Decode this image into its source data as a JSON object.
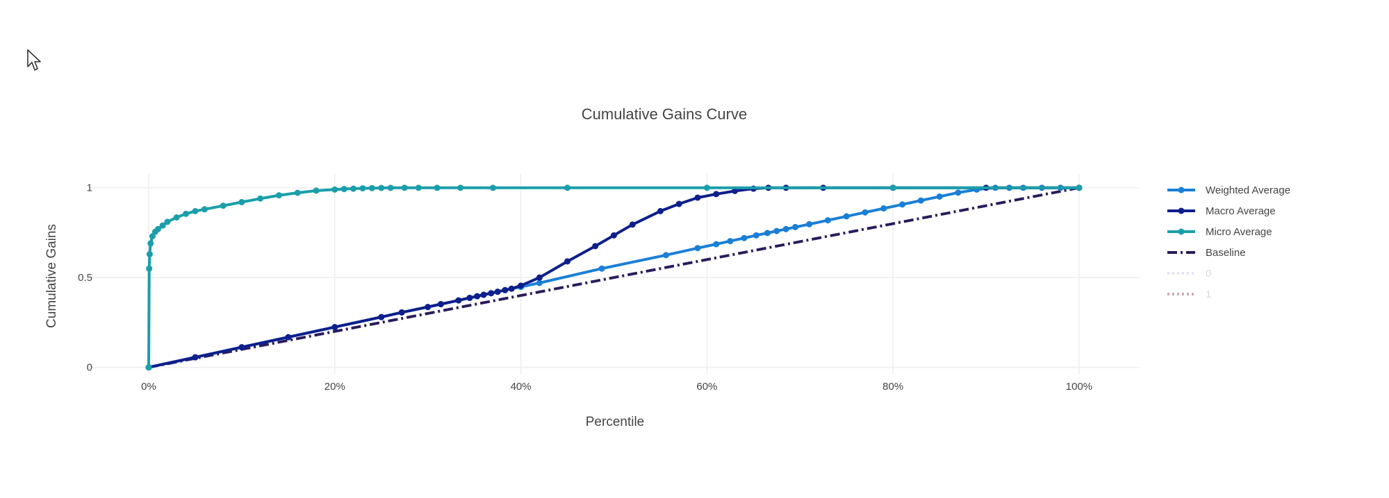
{
  "chart_data": {
    "type": "line",
    "title": "Cumulative Gains Curve",
    "xlabel": "Percentile",
    "ylabel": "Cumulative Gains",
    "xlim": [
      -0.065,
      1.065
    ],
    "ylim": [
      -0.04,
      1.08
    ],
    "x_tick_values": [
      0,
      0.2,
      0.4,
      0.6,
      0.8,
      1.0
    ],
    "x_tick_labels": [
      "0%",
      "20%",
      "40%",
      "60%",
      "80%",
      "100%"
    ],
    "y_tick_values": [
      0,
      0.5,
      1
    ],
    "y_tick_labels": [
      "0",
      "0.5",
      "1"
    ],
    "grid": true,
    "legend_position": "right",
    "series": [
      {
        "name": "Baseline",
        "color": "#2a1b5c",
        "dash": "dashdot",
        "opacity": 1,
        "markers": false,
        "x": [
          0,
          1
        ],
        "y": [
          0,
          1
        ]
      },
      {
        "name": "Weighted Average",
        "color": "#1a7fd6",
        "dash": "solid",
        "opacity": 1,
        "markers": true,
        "x": [
          0,
          0.05,
          0.1,
          0.15,
          0.2,
          0.25,
          0.272,
          0.3,
          0.314,
          0.333,
          0.345,
          0.353,
          0.36,
          0.368,
          0.375,
          0.383,
          0.39,
          0.4,
          0.42,
          0.487,
          0.556,
          0.59,
          0.61,
          0.625,
          0.64,
          0.653,
          0.665,
          0.675,
          0.685,
          0.695,
          0.71,
          0.73,
          0.75,
          0.77,
          0.79,
          0.81,
          0.83,
          0.85,
          0.87,
          0.89,
          0.91,
          0.925,
          0.94,
          0.96,
          0.98,
          1.0
        ],
        "y": [
          0,
          0.056,
          0.112,
          0.168,
          0.224,
          0.28,
          0.306,
          0.336,
          0.352,
          0.373,
          0.387,
          0.396,
          0.404,
          0.413,
          0.421,
          0.43,
          0.438,
          0.448,
          0.47,
          0.55,
          0.625,
          0.664,
          0.686,
          0.703,
          0.72,
          0.735,
          0.748,
          0.759,
          0.77,
          0.781,
          0.797,
          0.819,
          0.841,
          0.863,
          0.885,
          0.907,
          0.929,
          0.951,
          0.973,
          0.99,
          1.0,
          1.0,
          1.0,
          1.0,
          1.0,
          1.0
        ]
      },
      {
        "name": "Macro Average",
        "color": "#0d1f8c",
        "dash": "solid",
        "opacity": 1,
        "markers": true,
        "x": [
          0,
          0.05,
          0.1,
          0.15,
          0.2,
          0.25,
          0.272,
          0.3,
          0.314,
          0.333,
          0.345,
          0.353,
          0.36,
          0.368,
          0.375,
          0.383,
          0.39,
          0.4,
          0.42,
          0.45,
          0.48,
          0.5,
          0.52,
          0.55,
          0.57,
          0.59,
          0.61,
          0.63,
          0.65,
          0.666,
          0.685,
          0.725,
          0.8,
          0.9,
          1.0
        ],
        "y": [
          0,
          0.056,
          0.112,
          0.168,
          0.224,
          0.28,
          0.306,
          0.336,
          0.352,
          0.373,
          0.387,
          0.396,
          0.404,
          0.413,
          0.421,
          0.43,
          0.438,
          0.455,
          0.5,
          0.59,
          0.675,
          0.735,
          0.795,
          0.87,
          0.91,
          0.945,
          0.965,
          0.982,
          0.995,
          1.0,
          1.0,
          1.0,
          1.0,
          1.0,
          1.0
        ]
      },
      {
        "name": "Micro Average",
        "color": "#1a9eaa",
        "dash": "solid",
        "opacity": 1,
        "markers": true,
        "x": [
          0,
          0.0005,
          0.001,
          0.002,
          0.004,
          0.007,
          0.01,
          0.015,
          0.02,
          0.03,
          0.04,
          0.05,
          0.06,
          0.08,
          0.1,
          0.12,
          0.14,
          0.16,
          0.18,
          0.2,
          0.21,
          0.22,
          0.23,
          0.24,
          0.25,
          0.26,
          0.275,
          0.29,
          0.31,
          0.335,
          0.37,
          0.45,
          0.6,
          0.8,
          1.0
        ],
        "y": [
          0,
          0.55,
          0.63,
          0.69,
          0.73,
          0.755,
          0.77,
          0.79,
          0.81,
          0.835,
          0.855,
          0.87,
          0.88,
          0.9,
          0.92,
          0.94,
          0.958,
          0.972,
          0.984,
          0.99,
          0.993,
          0.995,
          0.997,
          0.998,
          0.999,
          0.9995,
          1.0,
          1.0,
          1.0,
          1.0,
          1.0,
          1.0,
          1.0,
          1.0,
          1.0
        ]
      },
      {
        "name": "0",
        "color": "#c6b9ef",
        "dash": "dot",
        "opacity": 0.45,
        "markers": false,
        "x": [],
        "y": []
      },
      {
        "name": "1",
        "color": "#8f4a66",
        "dash": "dot",
        "opacity": 0.45,
        "markers": false,
        "x": [],
        "y": []
      }
    ],
    "legend_order": [
      "Weighted Average",
      "Macro Average",
      "Micro Average",
      "Baseline",
      "0",
      "1"
    ],
    "legend_faded": [
      "0",
      "1"
    ]
  },
  "icons": {
    "cursor": "mouse-pointer-icon"
  }
}
